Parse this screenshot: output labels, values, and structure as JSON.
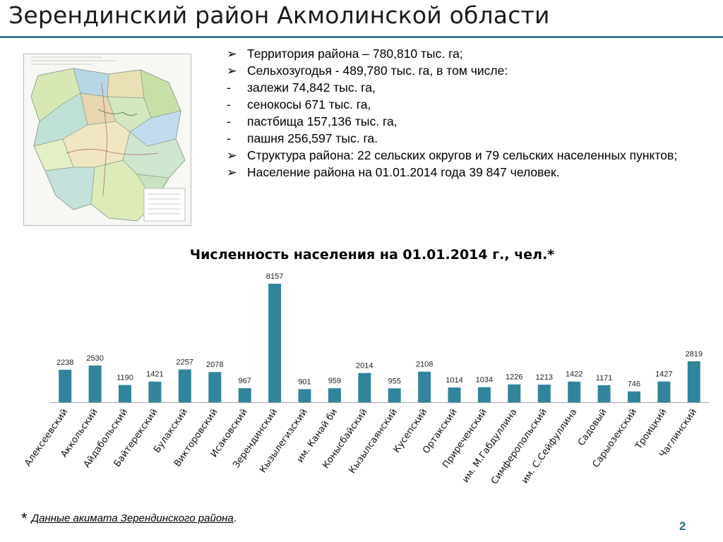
{
  "header": {
    "title": "Зерендинский район Акмолинской области"
  },
  "facts": [
    {
      "bullet": "➢",
      "text": "Территория района – 780,810 тыс. га;"
    },
    {
      "bullet": "➢",
      "text": "Сельхозугодья - 489,780  тыс. га, в том числе:"
    },
    {
      "bullet": "-",
      "text": "залежи 74,842 тыс. га,"
    },
    {
      "bullet": "-",
      "text": "сенокосы 671 тыс. га,"
    },
    {
      "bullet": "-",
      "text": "пастбища 157,136 тыс. га,"
    },
    {
      "bullet": "-",
      "text": "пашня 256,597 тыс. га."
    },
    {
      "bullet": "➢",
      "text": "Структура района: 22 сельских округов и 79 сельских населенных пунктов;"
    },
    {
      "bullet": "➢",
      "text": "Население района на 01.01.2014 года  39 847 человек."
    }
  ],
  "chart_data": {
    "type": "bar",
    "title": "Численность населения на 01.01.2014 г., чел.*",
    "categories": [
      "Алексеевский",
      "Аккольский",
      "Айдабольский",
      "Байтерекский",
      "Булакский",
      "Викторовский",
      "Исаковский",
      "Зерендинский",
      "Кызылегизский",
      "им. Канай би",
      "Конысбайский",
      "Кызылсаянский",
      "Кусепский",
      "Ортакский",
      "Приреченский",
      "им. М.Габдуллина",
      "Симферопольский",
      "им. С.Сейфуллина",
      "Садовый",
      "Сарыозекский",
      "Троицкий",
      "Чаглинский"
    ],
    "values": [
      2238,
      2530,
      1190,
      1421,
      2257,
      2078,
      967,
      8157,
      901,
      959,
      2014,
      955,
      2108,
      1014,
      1034,
      1226,
      1213,
      1422,
      1171,
      746,
      1427,
      2819
    ],
    "ylim": [
      0,
      8157
    ],
    "grid": false,
    "legend": "none",
    "bar_color": "#31849b"
  },
  "footnote": {
    "star": "*",
    "text": "Данные акимата Зерендинского района",
    "tail": "."
  },
  "page": {
    "number": "2"
  }
}
